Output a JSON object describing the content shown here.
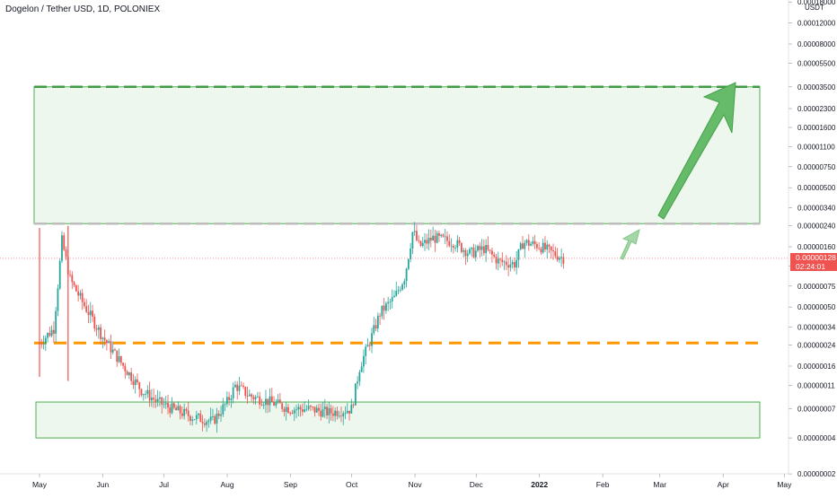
{
  "header": {
    "title": "Dogelon / Tether USD, 1D, POLONIEX"
  },
  "price_scale": {
    "currency": "USDT"
  },
  "last_price": {
    "value": "0.00000128",
    "countdown": "02:24:01"
  },
  "chart_data": {
    "type": "candlestick",
    "title": "Dogelon / Tether USD, 1D, POLONIEX",
    "y_scale": "log",
    "x_ticks": [
      "May",
      "Jun",
      "Jul",
      "Aug",
      "Sep",
      "Oct",
      "Nov",
      "Dec",
      "2022",
      "Feb",
      "Mar",
      "Apr",
      "May"
    ],
    "y_ticks": [
      "0.00018000",
      "0.00012000",
      "0.00008000",
      "0.00005500",
      "0.00003500",
      "0.00002300",
      "0.00001600",
      "0.00001100",
      "0.00000750",
      "0.00000500",
      "0.00000340",
      "0.00000240",
      "0.00000160",
      "0.00000110",
      "0.00000075",
      "0.00000050",
      "0.00000034",
      "0.00000024",
      "0.00000016",
      "0.00000011",
      "0.00000007",
      "0.00000004",
      "0.00000002"
    ],
    "close_path": [
      [
        "2021-05-01",
        2.5e-07
      ],
      [
        "2021-05-08",
        3.3e-07
      ],
      [
        "2021-05-12",
        1.8e-06
      ],
      [
        "2021-05-16",
        8.5e-07
      ],
      [
        "2021-05-22",
        5.5e-07
      ],
      [
        "2021-06-01",
        2.8e-07
      ],
      [
        "2021-06-10",
        1.7e-07
      ],
      [
        "2021-06-20",
        1e-07
      ],
      [
        "2021-06-28",
        8e-08
      ],
      [
        "2021-07-05",
        7e-08
      ],
      [
        "2021-07-15",
        6e-08
      ],
      [
        "2021-07-25",
        5.5e-08
      ],
      [
        "2021-08-01",
        8e-08
      ],
      [
        "2021-08-05",
        1.1e-07
      ],
      [
        "2021-08-12",
        9e-08
      ],
      [
        "2021-08-22",
        8e-08
      ],
      [
        "2021-09-01",
        7e-08
      ],
      [
        "2021-09-10",
        7e-08
      ],
      [
        "2021-09-20",
        6.5e-08
      ],
      [
        "2021-10-01",
        7e-08
      ],
      [
        "2021-10-05",
        1.6e-07
      ],
      [
        "2021-10-10",
        2.6e-07
      ],
      [
        "2021-10-15",
        4.5e-07
      ],
      [
        "2021-10-22",
        6e-07
      ],
      [
        "2021-10-27",
        9e-07
      ],
      [
        "2021-10-31",
        2.2e-06
      ],
      [
        "2021-11-03",
        1.6e-06
      ],
      [
        "2021-11-10",
        1.9e-06
      ],
      [
        "2021-11-20",
        1.75e-06
      ],
      [
        "2021-11-28",
        1.4e-06
      ],
      [
        "2021-12-05",
        1.55e-06
      ],
      [
        "2021-12-12",
        1.2e-06
      ],
      [
        "2021-12-20",
        1.15e-06
      ],
      [
        "2021-12-24",
        1.75e-06
      ],
      [
        "2021-12-31",
        1.65e-06
      ],
      [
        "2022-01-08",
        1.4e-06
      ],
      [
        "2022-01-13",
        1.28e-06
      ]
    ],
    "last_price": 1.28e-06,
    "annotations": {
      "target_zone": {
        "top": 3.5e-05,
        "bottom": 2.5e-06,
        "color": "#4caf50"
      },
      "support_zone": {
        "top": 8e-08,
        "bottom": 4e-08,
        "color": "#4caf50"
      },
      "resistance_line": {
        "value": 2.5e-07,
        "color": "#ff9800",
        "style": "dashed"
      },
      "arrows": [
        "up-arrow-large",
        "up-arrow-small"
      ]
    },
    "colors": {
      "up": "#26a69a",
      "down": "#ef5350",
      "zone_fill": "#e8f5e9",
      "zone_line": "#4caf50",
      "orange": "#ff9800"
    }
  }
}
